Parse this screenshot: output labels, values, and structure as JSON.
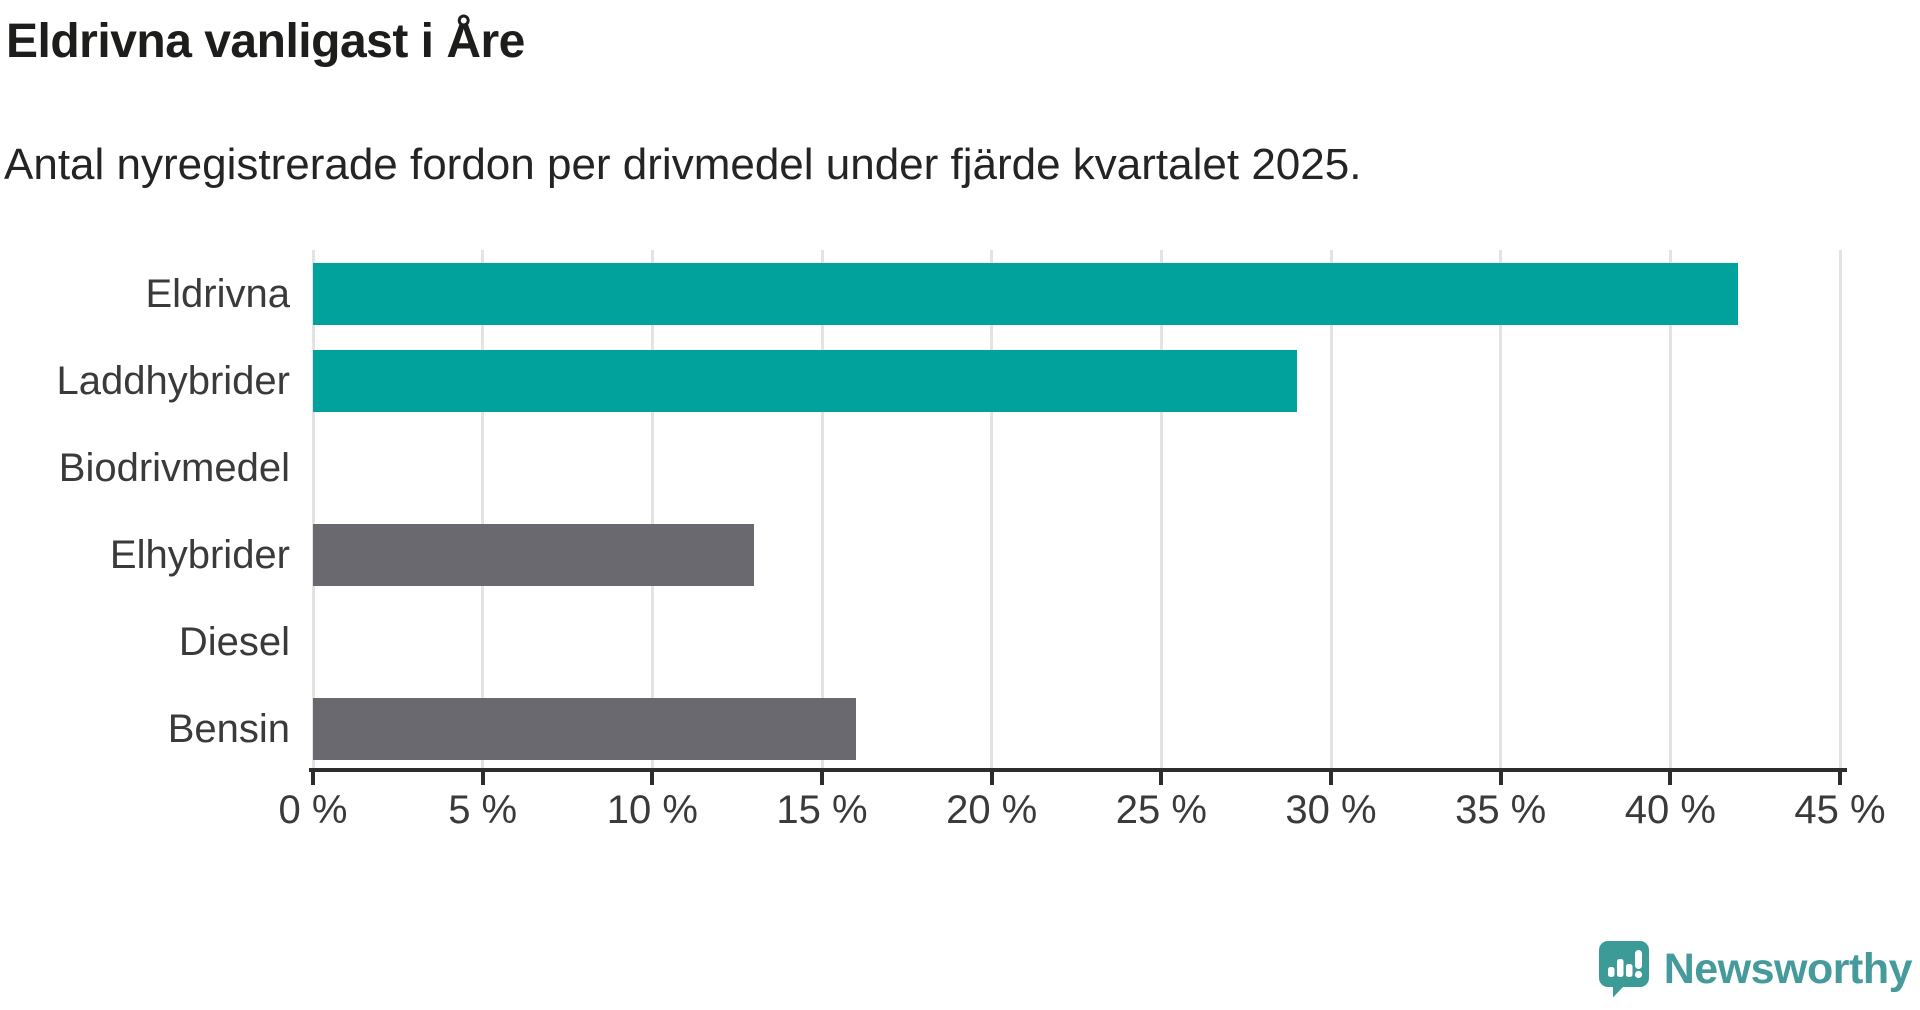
{
  "header": {
    "title": "Eldrivna vanligast i Åre",
    "subtitle": "Antal nyregistrerade fordon per drivmedel under fjärde kvartalet 2025."
  },
  "chart_data": {
    "type": "bar",
    "orientation": "horizontal",
    "title": "Eldrivna vanligast i Åre",
    "subtitle": "Antal nyregistrerade fordon per drivmedel under fjärde kvartalet 2025.",
    "categories": [
      "Eldrivna",
      "Laddhybrider",
      "Biodrivmedel",
      "Elhybrider",
      "Diesel",
      "Bensin"
    ],
    "values": [
      42,
      29,
      0,
      13,
      0,
      16
    ],
    "value_unit": "%",
    "xlim": [
      0,
      45
    ],
    "x_ticks": [
      0,
      5,
      10,
      15,
      20,
      25,
      30,
      35,
      40,
      45
    ],
    "x_tick_suffix": " %",
    "grid": true,
    "legend": "none",
    "bar_colors": [
      "#00a29b",
      "#00a29b",
      "#6a696f",
      "#6a696f",
      "#6a696f",
      "#6a696f"
    ]
  },
  "colors": {
    "accent_teal": "#00a29b",
    "neutral_gray": "#6a696f",
    "gridline": "#e3e3e3",
    "axis": "#2d2d2d",
    "title_text": "#1d1d1b",
    "label_text": "#3a3a3a",
    "brand_teal": "#459a9b"
  },
  "branding": {
    "name": "Newsworthy",
    "icon": "speech-bubble-bar-chart-icon"
  }
}
